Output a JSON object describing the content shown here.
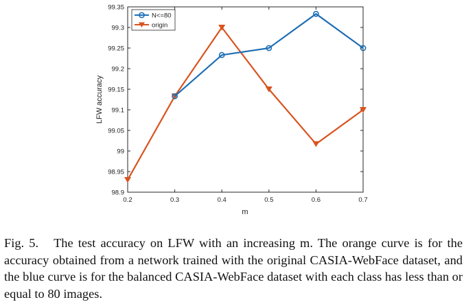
{
  "chart_data": {
    "type": "line",
    "xlabel": "m",
    "ylabel": "LFW accuracy",
    "x": [
      0.2,
      0.3,
      0.4,
      0.5,
      0.6,
      0.7
    ],
    "xticks": [
      "0.2",
      "0.3",
      "0.4",
      "0.5",
      "0.6",
      "0.7"
    ],
    "xlim": [
      0.2,
      0.7
    ],
    "ylim": [
      98.9,
      99.35
    ],
    "yticks": [
      "98.9",
      "98.95",
      "99",
      "99.05",
      "99.1",
      "99.15",
      "99.2",
      "99.25",
      "99.3",
      "99.35"
    ],
    "grid": false,
    "legend_position": "top-left",
    "series": [
      {
        "name": "N<=80",
        "color": "#1f6fb5",
        "marker": "circle",
        "x": [
          0.3,
          0.4,
          0.5,
          0.6,
          0.7
        ],
        "values": [
          99.133,
          99.233,
          99.25,
          99.333,
          99.25
        ]
      },
      {
        "name": "origin",
        "color": "#d9531e",
        "marker": "triangle-down",
        "x": [
          0.2,
          0.3,
          0.4,
          0.5,
          0.6,
          0.7
        ],
        "values": [
          98.93,
          99.133,
          99.3,
          99.15,
          99.017,
          99.1
        ]
      }
    ]
  },
  "caption": {
    "label": "Fig. 5.",
    "text": "The test accuracy on LFW with an increasing m. The orange curve is for the accuracy obtained from a network trained with the original CASIA-WebFace dataset, and the blue curve is for the balanced CASIA-WebFace dataset with each class has less than or equal to 80 images."
  }
}
